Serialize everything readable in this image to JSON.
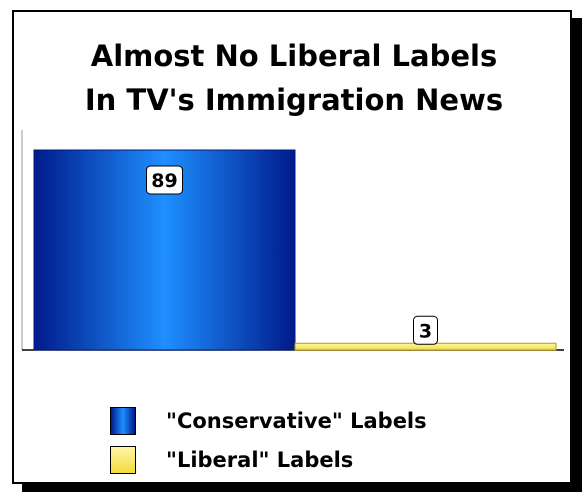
{
  "chart_data": {
    "type": "bar",
    "title": "Almost No Liberal Labels\nIn TV's Immigration News",
    "categories": [
      "\"Conservative\" Labels",
      "\"Liberal\" Labels"
    ],
    "values": [
      89,
      3
    ],
    "data_labels": [
      "89",
      "3"
    ],
    "ylim": [
      0,
      89
    ],
    "grid": false,
    "legend_position": "bottom",
    "colors": {
      "conservative": "#0a3dd0",
      "conservative_dark": "#001a8a",
      "conservative_light": "#1f8fff",
      "liberal": "#f2dc3c",
      "liberal_dark": "#b89a10",
      "liberal_light": "#fff6a6"
    }
  },
  "legend": {
    "items": [
      {
        "label": "\"Conservative\" Labels",
        "color_key": "conservative"
      },
      {
        "label": "\"Liberal\" Labels",
        "color_key": "liberal"
      }
    ]
  }
}
